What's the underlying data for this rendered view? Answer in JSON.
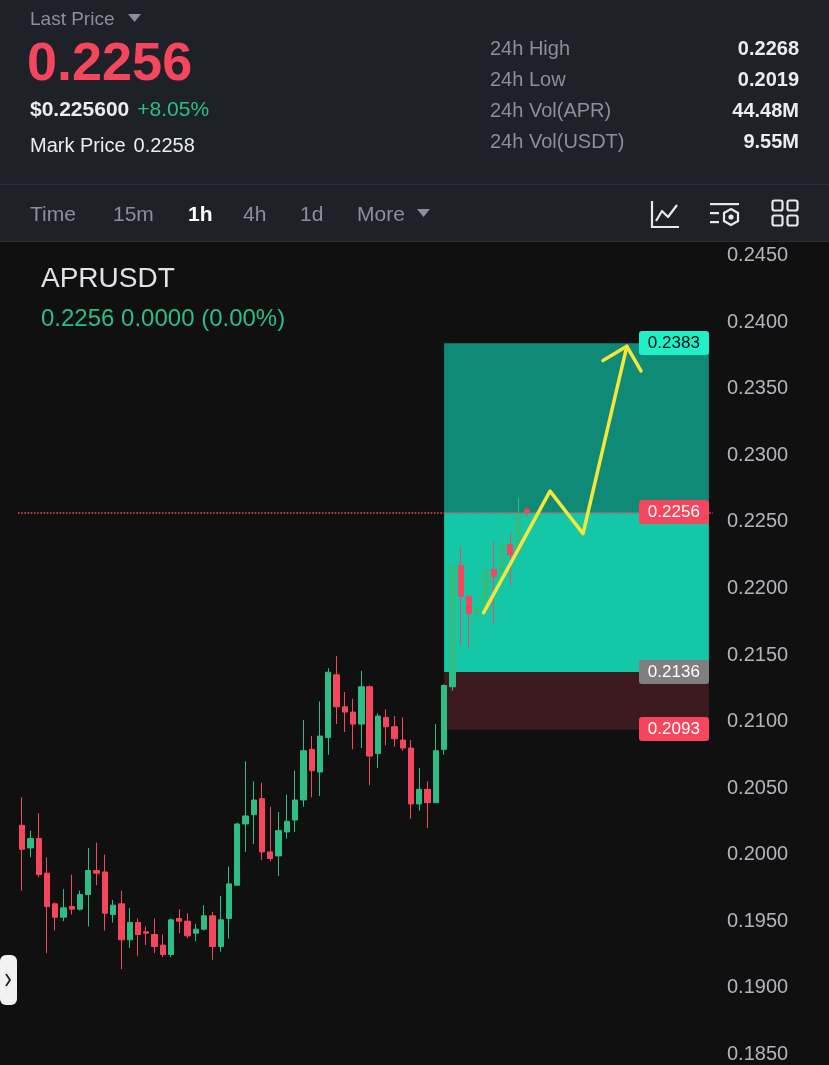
{
  "chart_data": {
    "type": "candlestick",
    "title": "APRUSDT",
    "subtitle": "0.2256 0.0000 (0.00%)",
    "categories": [
      null,
      null,
      null,
      null,
      null,
      null,
      null,
      null,
      null,
      null,
      null,
      null,
      null,
      null,
      null,
      null,
      null,
      null,
      null,
      null,
      null,
      null,
      null,
      null,
      null,
      null,
      null,
      null,
      null,
      null,
      null,
      null,
      null,
      null,
      null,
      null,
      null,
      null,
      null,
      null,
      null,
      null,
      null,
      null,
      null,
      null,
      null,
      null,
      null,
      null,
      null,
      null,
      null,
      null,
      null,
      null,
      null,
      null,
      null,
      null,
      null,
      null,
      null,
      null,
      null,
      null,
      null,
      null,
      null,
      null,
      null,
      null,
      null,
      null,
      null,
      null,
      null,
      null,
      null,
      null,
      null,
      null,
      null,
      null
    ],
    "ohlc": [
      [
        0.2021,
        0.2042,
        0.1972,
        0.2003
      ],
      [
        0.2004,
        0.2017,
        0.1997,
        0.2011
      ],
      [
        0.2011,
        0.203,
        0.1982,
        0.1984
      ],
      [
        0.1985,
        0.1997,
        0.1925,
        0.196
      ],
      [
        0.1962,
        0.1963,
        0.1942,
        0.1952
      ],
      [
        0.1952,
        0.1973,
        0.1949,
        0.1959
      ],
      [
        0.196,
        0.1984,
        0.1954,
        0.1958
      ],
      [
        0.1958,
        0.1972,
        0.1957,
        0.1969
      ],
      [
        0.1969,
        0.2004,
        0.1945,
        0.1987
      ],
      [
        0.1987,
        0.2008,
        0.1976,
        0.1985
      ],
      [
        0.1986,
        0.1999,
        0.1942,
        0.1955
      ],
      [
        0.1954,
        0.1965,
        0.1948,
        0.1961
      ],
      [
        0.1962,
        0.1972,
        0.1913,
        0.1935
      ],
      [
        0.1935,
        0.1959,
        0.1929,
        0.1948
      ],
      [
        0.1948,
        0.1951,
        0.1923,
        0.1939
      ],
      [
        0.1941,
        0.1945,
        0.1931,
        0.194
      ],
      [
        0.1939,
        0.1951,
        0.1925,
        0.193
      ],
      [
        0.1931,
        0.1939,
        0.1922,
        0.1924
      ],
      [
        0.1924,
        0.1951,
        0.1922,
        0.195
      ],
      [
        0.1951,
        0.1958,
        0.194,
        0.1949
      ],
      [
        0.1949,
        0.1955,
        0.1936,
        0.1938
      ],
      [
        0.194,
        0.1947,
        0.1934,
        0.1943
      ],
      [
        0.1943,
        0.1961,
        0.1942,
        0.1953
      ],
      [
        0.1953,
        0.1956,
        0.192,
        0.193
      ],
      [
        0.193,
        0.1968,
        0.1926,
        0.195
      ],
      [
        0.1951,
        0.199,
        0.1936,
        0.1977
      ],
      [
        0.1976,
        0.2023,
        0.1976,
        0.2022
      ],
      [
        0.2022,
        0.2069,
        0.2001,
        0.2028
      ],
      [
        0.2029,
        0.2054,
        0.2007,
        0.204
      ],
      [
        0.2041,
        0.2053,
        0.1995,
        0.2001
      ],
      [
        0.2001,
        0.2035,
        0.1994,
        0.1996
      ],
      [
        0.1998,
        0.2031,
        0.1983,
        0.2017
      ],
      [
        0.2016,
        0.2044,
        0.2011,
        0.2024
      ],
      [
        0.2025,
        0.2062,
        0.2016,
        0.204
      ],
      [
        0.204,
        0.21,
        0.2035,
        0.2077
      ],
      [
        0.2078,
        0.2088,
        0.2042,
        0.2062
      ],
      [
        0.2061,
        0.2114,
        0.2043,
        0.2088
      ],
      [
        0.2087,
        0.2139,
        0.2074,
        0.2136
      ],
      [
        0.2134,
        0.2148,
        0.2097,
        0.211
      ],
      [
        0.211,
        0.2121,
        0.2091,
        0.2106
      ],
      [
        0.2106,
        0.2116,
        0.2078,
        0.2097
      ],
      [
        0.2097,
        0.2137,
        0.2079,
        0.2125
      ],
      [
        0.2125,
        0.2126,
        0.2051,
        0.2073
      ],
      [
        0.2075,
        0.2105,
        0.2064,
        0.2103
      ],
      [
        0.2102,
        0.2108,
        0.2081,
        0.2095
      ],
      [
        0.2095,
        0.2103,
        0.208,
        0.2086
      ],
      [
        0.2085,
        0.2102,
        0.2077,
        0.2079
      ],
      [
        0.2079,
        0.2085,
        0.2026,
        0.2037
      ],
      [
        0.2037,
        0.2064,
        0.2032,
        0.2048
      ],
      [
        0.2048,
        0.2054,
        0.2019,
        0.2038
      ],
      [
        0.2038,
        0.2097,
        0.2038,
        0.2077
      ],
      [
        0.2078,
        0.2127,
        0.2074,
        0.2126
      ],
      [
        0.2125,
        0.2218,
        0.2122,
        0.2216
      ],
      [
        0.2216,
        0.223,
        0.2156,
        0.2193
      ],
      [
        0.2193,
        0.2193,
        0.2154,
        0.218
      ],
      [
        0.218,
        0.22,
        0.2166,
        0.2185
      ],
      [
        0.2183,
        0.2221,
        0.2174,
        0.2213
      ],
      [
        0.2213,
        0.2234,
        0.2172,
        0.2208
      ],
      [
        0.2211,
        0.2248,
        0.2183,
        0.2232
      ],
      [
        0.2232,
        0.224,
        0.2201,
        0.2224
      ],
      [
        0.2224,
        0.2267,
        0.2223,
        0.2255
      ],
      [
        0.2258,
        0.226,
        0.2253,
        0.2256
      ],
      null,
      null,
      null,
      null,
      null,
      null,
      null,
      null,
      null,
      null,
      null,
      null,
      null,
      null,
      null,
      null,
      null,
      null,
      null,
      null,
      null,
      null
    ],
    "ylim": [
      0.185,
      0.245
    ],
    "yticks": [
      {
        "value": 0.185,
        "label": "0.1850"
      },
      {
        "value": 0.19,
        "label": "0.1900"
      },
      {
        "value": 0.195,
        "label": "0.1950"
      },
      {
        "value": 0.2,
        "label": "0.2000"
      },
      {
        "value": 0.205,
        "label": "0.2050"
      },
      {
        "value": 0.21,
        "label": "0.2100"
      },
      {
        "value": 0.215,
        "label": "0.2150"
      },
      {
        "value": 0.22,
        "label": "0.2200"
      },
      {
        "value": 0.225,
        "label": "0.2250"
      },
      {
        "value": 0.23,
        "label": "0.2300"
      },
      {
        "value": 0.235,
        "label": "0.2350"
      },
      {
        "value": 0.24,
        "label": "0.2400"
      },
      {
        "value": 0.245,
        "label": "0.2450"
      }
    ],
    "tick_labels": "y",
    "ref_lines": [
      {
        "axis": "y",
        "value": 0.2256,
        "label": "0.2256",
        "color": "#f6465d",
        "line_style": "dotted"
      }
    ],
    "bands": [
      {
        "axis": "y",
        "from": 0.2256,
        "to": 0.2383,
        "color": "#0e8a77",
        "label": "0.2383"
      },
      {
        "axis": "y",
        "from": 0.2136,
        "to": 0.2256,
        "color": "#14c7a6",
        "label": "0.2136"
      },
      {
        "axis": "y",
        "from": 0.2093,
        "to": 0.2136,
        "color": "#3c1a1f",
        "label": "0.2093"
      }
    ],
    "annotations": [
      "Last Price",
      "0.2256",
      "$0.225600",
      "+8.05%",
      "Mark Price",
      "0.2258",
      "24h High",
      "0.2268",
      "24h Low",
      "0.2019",
      "24h Vol(APR)",
      "44.48M",
      "24h Vol(USDT)",
      "9.55M",
      "Time",
      "15m",
      "1h",
      "4h",
      "1d",
      "More"
    ]
  }
}
